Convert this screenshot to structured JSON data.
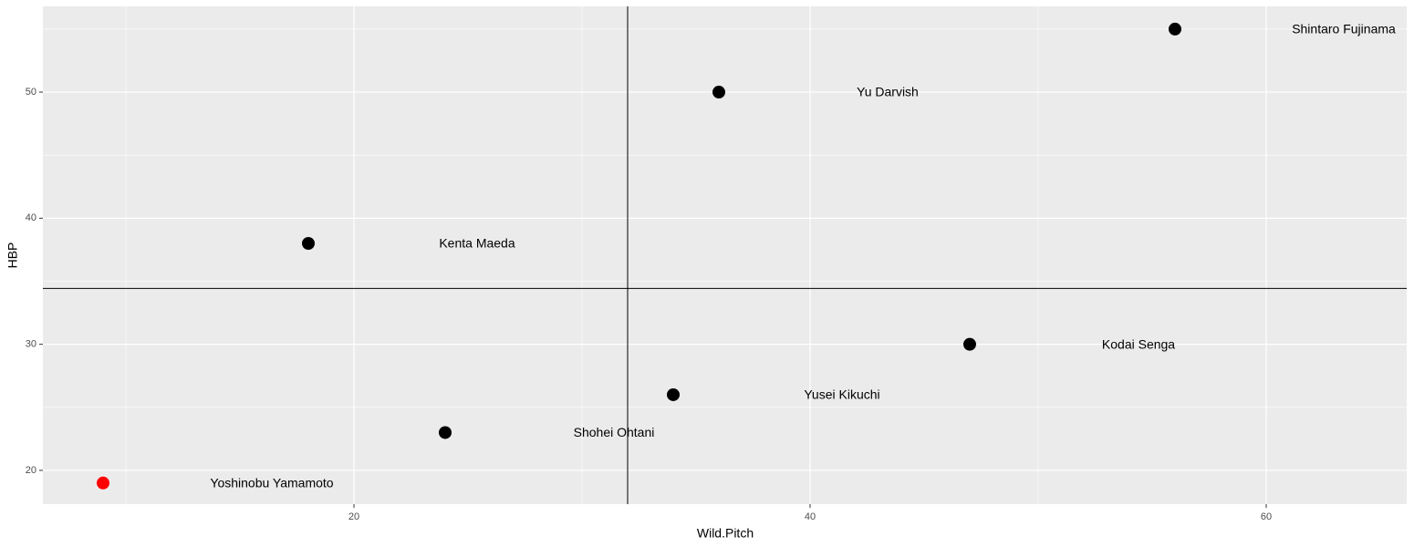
{
  "chart_data": {
    "type": "scatter",
    "x_label": "Wild.Pitch",
    "y_label": "HBP",
    "point_labels": [
      "Yoshinobu Yamamoto",
      "Shohei Ohtani",
      "Kenta Maeda",
      "Yu Darvish",
      "Yusei Kikuchi",
      "Kodai Senga",
      "Shintaro Fujinama"
    ],
    "x": [
      9,
      24,
      18,
      36,
      34,
      47,
      56
    ],
    "values": [
      19,
      23,
      38,
      50,
      26,
      30,
      55
    ],
    "colors": [
      "#ff0000",
      "#000000",
      "#000000",
      "#000000",
      "#000000",
      "#000000",
      "#000000"
    ],
    "xlim": [
      6.36,
      66.16
    ],
    "ylim": [
      17.32,
      56.8
    ],
    "xticks": [
      20,
      40,
      60
    ],
    "yticks": [
      20,
      30,
      40,
      50
    ],
    "xminor": [
      10,
      30,
      50
    ],
    "yminor": [
      25,
      35,
      45,
      55
    ],
    "vline": 32,
    "hline": 34.43,
    "grid": true
  }
}
